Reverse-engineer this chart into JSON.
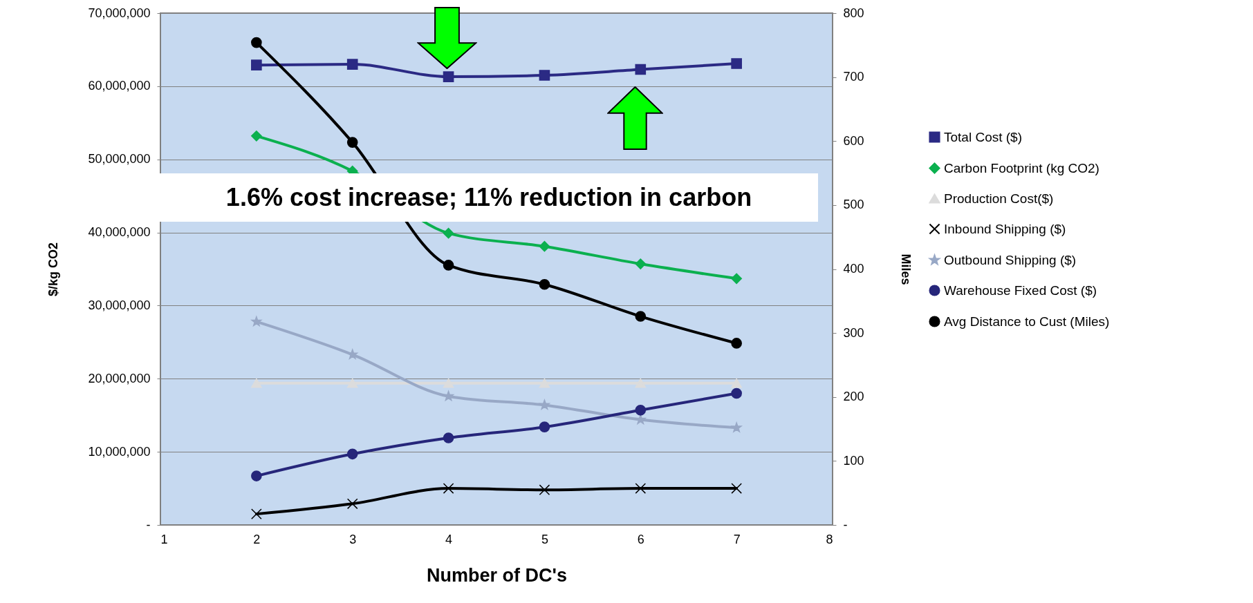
{
  "chart_data": {
    "type": "line",
    "xlabel": "Number of DC's",
    "ylabel": "$/kg CO2",
    "y2label": "Miles",
    "x": [
      2,
      3,
      4,
      5,
      6,
      7
    ],
    "xlim": [
      1,
      8
    ],
    "xticks": [
      1,
      2,
      3,
      4,
      5,
      6,
      7,
      8
    ],
    "ylim": [
      0,
      70000000
    ],
    "yticks": [
      {
        "value": 0,
        "label": "-"
      },
      {
        "value": 10000000,
        "label": "10,000,000"
      },
      {
        "value": 20000000,
        "label": "20,000,000"
      },
      {
        "value": 30000000,
        "label": "30,000,000"
      },
      {
        "value": 40000000,
        "label": "40,000,000"
      },
      {
        "value": 50000000,
        "label": "50,000,000"
      },
      {
        "value": 60000000,
        "label": "60,000,000"
      },
      {
        "value": 70000000,
        "label": "70,000,000"
      }
    ],
    "y2lim": [
      0,
      800
    ],
    "y2ticks": [
      {
        "value": 0,
        "label": "-"
      },
      100,
      200,
      300,
      400,
      500,
      600,
      700,
      800
    ],
    "grid": "y",
    "legend": "right",
    "annotations": [
      "1.6% cost increase; 11% reduction in carbon"
    ],
    "series": [
      {
        "name": "Total Cost ($)",
        "color": "#2b2a84",
        "marker": "square",
        "values": [
          62900000,
          63000000,
          61300000,
          61500000,
          62300000,
          63100000
        ]
      },
      {
        "name": "Carbon Footprint (kg CO2)",
        "color": "#0bb04f",
        "marker": "diamond",
        "values": [
          53200000,
          48400000,
          39900000,
          38100000,
          35700000,
          33700000
        ]
      },
      {
        "name": "Production Cost($)",
        "color": "#dcdcdc",
        "marker": "triangle",
        "values": [
          19400000,
          19400000,
          19400000,
          19400000,
          19400000,
          19400000
        ]
      },
      {
        "name": "Inbound Shipping ($)",
        "color": "#000000",
        "marker": "cross",
        "values": [
          1500000,
          2900000,
          5000000,
          4800000,
          5000000,
          5000000
        ]
      },
      {
        "name": "Outbound Shipping ($)",
        "color": "#98a8c6",
        "marker": "star",
        "values": [
          27800000,
          23300000,
          17600000,
          16400000,
          14400000,
          13300000
        ]
      },
      {
        "name": "Warehouse Fixed Cost ($)",
        "color": "#26267a",
        "marker": "circle",
        "values": [
          6700000,
          9700000,
          11900000,
          13400000,
          15700000,
          18000000
        ]
      },
      {
        "name": "Avg Distance to Cust (Miles)",
        "color": "#000000",
        "marker": "circle",
        "axis": "y2",
        "values": [
          754,
          598,
          406,
          376,
          326,
          284
        ]
      }
    ]
  }
}
